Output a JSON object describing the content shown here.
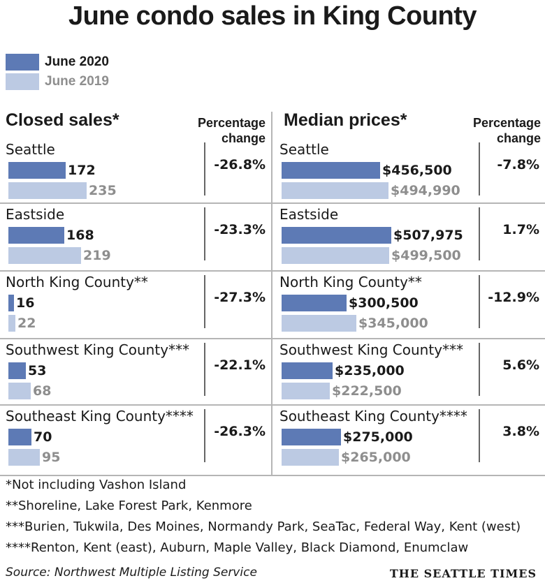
{
  "title": "June condo sales in King County",
  "legend": [
    {
      "label": "June 2020",
      "color": "#5d7ab5",
      "text_color": "#1a1a1a"
    },
    {
      "label": "June 2019",
      "color": "#bccae3",
      "text_color": "#8e8e8e"
    }
  ],
  "headers": {
    "closed_sales": "Closed sales*",
    "median_prices": "Median prices*",
    "pct_line1": "Percentage",
    "pct_line2": "change"
  },
  "chart_data": [
    {
      "type": "bar",
      "title": "Closed sales*",
      "categories": [
        "Seattle",
        "Eastside",
        "North King County**",
        "Southwest King County***",
        "Southeast King County****"
      ],
      "series": [
        {
          "name": "June 2020",
          "values": [
            172,
            168,
            16,
            53,
            70
          ],
          "labels": [
            "172",
            "168",
            "16",
            "53",
            "70"
          ]
        },
        {
          "name": "June 2019",
          "values": [
            235,
            219,
            22,
            68,
            95
          ],
          "labels": [
            "235",
            "219",
            "22",
            "68",
            "95"
          ]
        }
      ],
      "percentage_change": [
        "-26.8%",
        "-23.3%",
        "-27.3%",
        "-22.1%",
        "-26.3%"
      ],
      "max": 235
    },
    {
      "type": "bar",
      "title": "Median prices*",
      "categories": [
        "Seattle",
        "Eastside",
        "North King County**",
        "Southwest King County***",
        "Southeast King County****"
      ],
      "series": [
        {
          "name": "June 2020",
          "values": [
            456500,
            507975,
            300500,
            235000,
            275000
          ],
          "labels": [
            "$456,500",
            "$507,975",
            "$300,500",
            "$235,000",
            "$275,000"
          ]
        },
        {
          "name": "June 2019",
          "values": [
            494990,
            499500,
            345000,
            222500,
            265000
          ],
          "labels": [
            "$494,990",
            "$499,500",
            "$345,000",
            "$222,500",
            "$265,000"
          ]
        }
      ],
      "percentage_change": [
        "-7.8%",
        "1.7%",
        "-12.9%",
        "5.6%",
        "3.8%"
      ],
      "max": 507975
    }
  ],
  "footnotes": [
    "*Not including Vashon Island",
    "**Shoreline, Lake Forest Park, Kenmore",
    "***Burien, Tukwila, Des Moines, Normandy Park, SeaTac, Federal Way, Kent (west)",
    "****Renton, Kent (east), Auburn, Maple Valley, Black Diamond, Enumclaw"
  ],
  "source": "Source: Northwest Multiple Listing Service",
  "brand": "THE SEATTLE TIMES"
}
